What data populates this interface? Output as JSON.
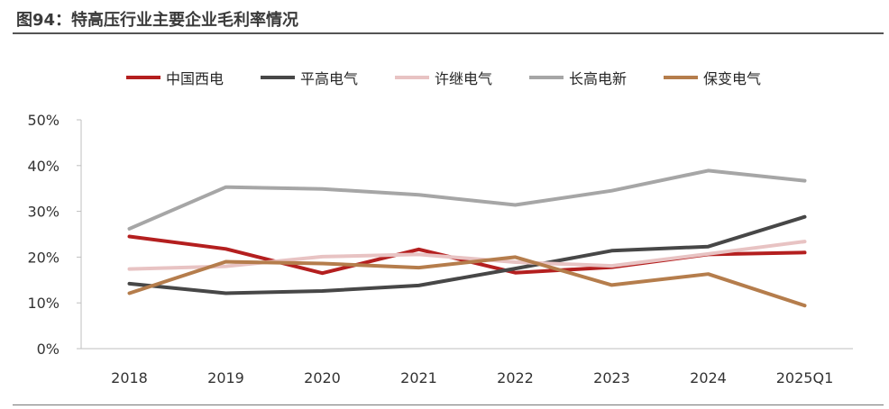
{
  "figure": {
    "title": "图94：特高压行业主要企业毛利率情况"
  },
  "chart_data": {
    "type": "line",
    "title": "",
    "xlabel": "",
    "ylabel": "",
    "categories": [
      "2018",
      "2019",
      "2020",
      "2021",
      "2022",
      "2023",
      "2024",
      "2025Q1"
    ],
    "ylim": [
      0,
      50
    ],
    "yticks": [
      0,
      10,
      20,
      30,
      40,
      50
    ],
    "ytick_labels": [
      "0%",
      "10%",
      "20%",
      "30%",
      "40%",
      "50%"
    ],
    "grid": false,
    "legend_position": "top-center",
    "series": [
      {
        "name": "中国西电",
        "color": "#b41f1f",
        "values": [
          24.5,
          21.8,
          16.5,
          21.7,
          16.6,
          17.8,
          20.6,
          21.0
        ]
      },
      {
        "name": "平高电气",
        "color": "#474747",
        "values": [
          14.2,
          12.1,
          12.6,
          13.8,
          17.5,
          21.4,
          22.3,
          28.8
        ]
      },
      {
        "name": "许继电气",
        "color": "#e8c3c3",
        "values": [
          17.4,
          18.0,
          20.1,
          20.6,
          18.9,
          18.1,
          20.7,
          23.4
        ]
      },
      {
        "name": "长高电新",
        "color": "#a6a6a6",
        "values": [
          26.2,
          35.3,
          34.9,
          33.6,
          31.4,
          34.5,
          38.9,
          36.7
        ]
      },
      {
        "name": "保变电气",
        "color": "#b57d4c",
        "values": [
          12.1,
          19.0,
          18.6,
          17.7,
          20.0,
          13.9,
          16.3,
          9.4
        ]
      }
    ]
  }
}
